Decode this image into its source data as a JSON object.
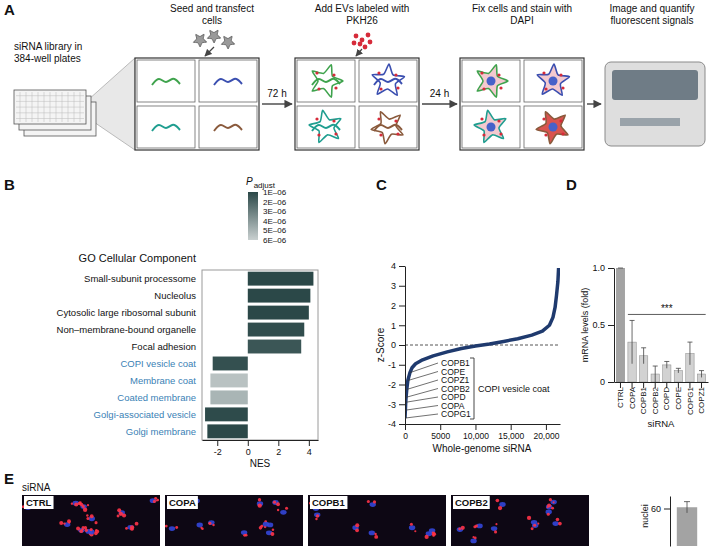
{
  "panel_labels": [
    "A",
    "B",
    "C",
    "D",
    "E"
  ],
  "workflow": {
    "library_label": "siRNA library in 384-well plates",
    "steps": [
      "Seed and transfect cells",
      "Add EVs labeled with PKH26",
      "Fix cells and stain with DAPI",
      "Image and quantify fluorescent signals"
    ],
    "intervals": [
      "72 h",
      "24 h"
    ]
  },
  "chart_data": [
    {
      "type": "bar",
      "orientation": "horizontal",
      "title": "GO Cellular Component",
      "xlabel": "NES",
      "categories": [
        "Small-subunit processome",
        "Nucleolus",
        "Cytosolic large ribosomal subunit",
        "Non–membrane-bound organelle",
        "Focal adhesion",
        "COPI vesicle coat",
        "Membrane coat",
        "Coated membrane",
        "Golgi-associated vesicle",
        "Golgi membrane"
      ],
      "values": [
        4.3,
        4.1,
        4.0,
        3.7,
        3.5,
        -2.3,
        -2.45,
        -2.45,
        -2.8,
        -2.65
      ],
      "p_adjust": [
        1e-06,
        1e-06,
        1e-06,
        1.2e-06,
        1.5e-06,
        1.3e-06,
        5.5e-06,
        5e-06,
        1.1e-06,
        1e-06
      ],
      "colorbar": {
        "title": "P",
        "subscript": "adjust",
        "lim": [
          1e-06,
          6e-06
        ],
        "ticks": [
          {
            "value": 1e-06,
            "label": "1E–06"
          },
          {
            "value": 2e-06,
            "label": "2E–06"
          },
          {
            "value": 3e-06,
            "label": "3E–06"
          },
          {
            "value": 4e-06,
            "label": "4E–06"
          },
          {
            "value": 5e-06,
            "label": "5E–06"
          },
          {
            "value": 6e-06,
            "label": "6E–06"
          }
        ]
      },
      "xlim": [
        -3,
        4.6
      ],
      "xticks": [
        -2,
        0,
        2,
        4
      ]
    },
    {
      "type": "line",
      "xlabel": "Whole-genome siRNA",
      "ylabel": "z-Score",
      "x": [
        0,
        50,
        100,
        150,
        250,
        400,
        700,
        1000,
        1500,
        2500,
        4000,
        6000,
        8000,
        10000,
        11000,
        12000,
        14000,
        16000,
        18000,
        19500,
        20500,
        21000,
        21300,
        21500,
        21700,
        21800
      ],
      "series": [
        {
          "values": [
            -3.7,
            -3.3,
            -2.9,
            -2.65,
            -2.25,
            -1.8,
            -1.4,
            -1.15,
            -0.95,
            -0.75,
            -0.55,
            -0.35,
            -0.18,
            -0.05,
            0,
            0.05,
            0.18,
            0.32,
            0.5,
            0.7,
            1.0,
            1.4,
            1.9,
            2.5,
            3.2,
            3.9
          ],
          "color": "#1f3a6e"
        }
      ],
      "xlim": [
        0,
        22000
      ],
      "xticks": [
        0,
        5000,
        {
          "value": 10000,
          "label": "10,000"
        },
        {
          "value": 15000,
          "label": "15,000"
        },
        {
          "value": 20000,
          "label": "20,000"
        }
      ],
      "ylim": [
        -4,
        4
      ],
      "yticks": [
        -4,
        -3,
        -2,
        -1,
        0,
        1,
        2,
        3,
        4
      ],
      "hline": 0,
      "annotations": [
        {
          "text": "COPB1",
          "x": 700,
          "y": -1.4
        },
        {
          "text": "COPE",
          "x": 400,
          "y": -1.8
        },
        {
          "text": "COPZ1",
          "x": 250,
          "y": -2.25
        },
        {
          "text": "COPB2",
          "x": 150,
          "y": -2.65
        },
        {
          "text": "COPD",
          "x": 100,
          "y": -2.9
        },
        {
          "text": "COPA",
          "x": 50,
          "y": -3.3
        },
        {
          "text": "COPG1",
          "x": 0,
          "y": -3.7
        }
      ],
      "bracket_label": "COPI vesicle coat"
    },
    {
      "type": "bar",
      "xlabel": "siRNA",
      "ylabel": "mRNA levels (fold)",
      "categories": [
        "CTRL",
        "COPA",
        "COPB1",
        "COPB2",
        "COPD",
        "COPE",
        "COPG1",
        "COPZ1"
      ],
      "values": [
        1,
        0.35,
        0.23,
        0.07,
        0.15,
        0.1,
        0.25,
        0.07
      ],
      "error": [
        0,
        0.19,
        0.07,
        0.07,
        0.03,
        0.02,
        0.1,
        0.03
      ],
      "colors": [
        "#a3a3a3",
        "#d2d2d2",
        "#d2d2d2",
        "#d2d2d2",
        "#d2d2d2",
        "#d2d2d2",
        "#d2d2d2",
        "#d2d2d2"
      ],
      "ylim": [
        0,
        1
      ],
      "yticks": [
        0,
        0.5,
        {
          "value": 1,
          "label": "1.0"
        }
      ],
      "significance": {
        "text": "***",
        "from": "COPA",
        "to": "COPZ1"
      }
    },
    {
      "type": "bar",
      "ylabel": "nuclei",
      "categories": [
        null
      ],
      "values": [
        62
      ],
      "error": [
        9
      ],
      "colors": [
        "#a3a3a3"
      ],
      "ylim": [
        0,
        80
      ],
      "yticks": [
        60
      ]
    }
  ],
  "micrographs": {
    "title": "siRNA",
    "labels": [
      "CTRL",
      "COPA",
      "COPB1",
      "COPB2"
    ]
  }
}
